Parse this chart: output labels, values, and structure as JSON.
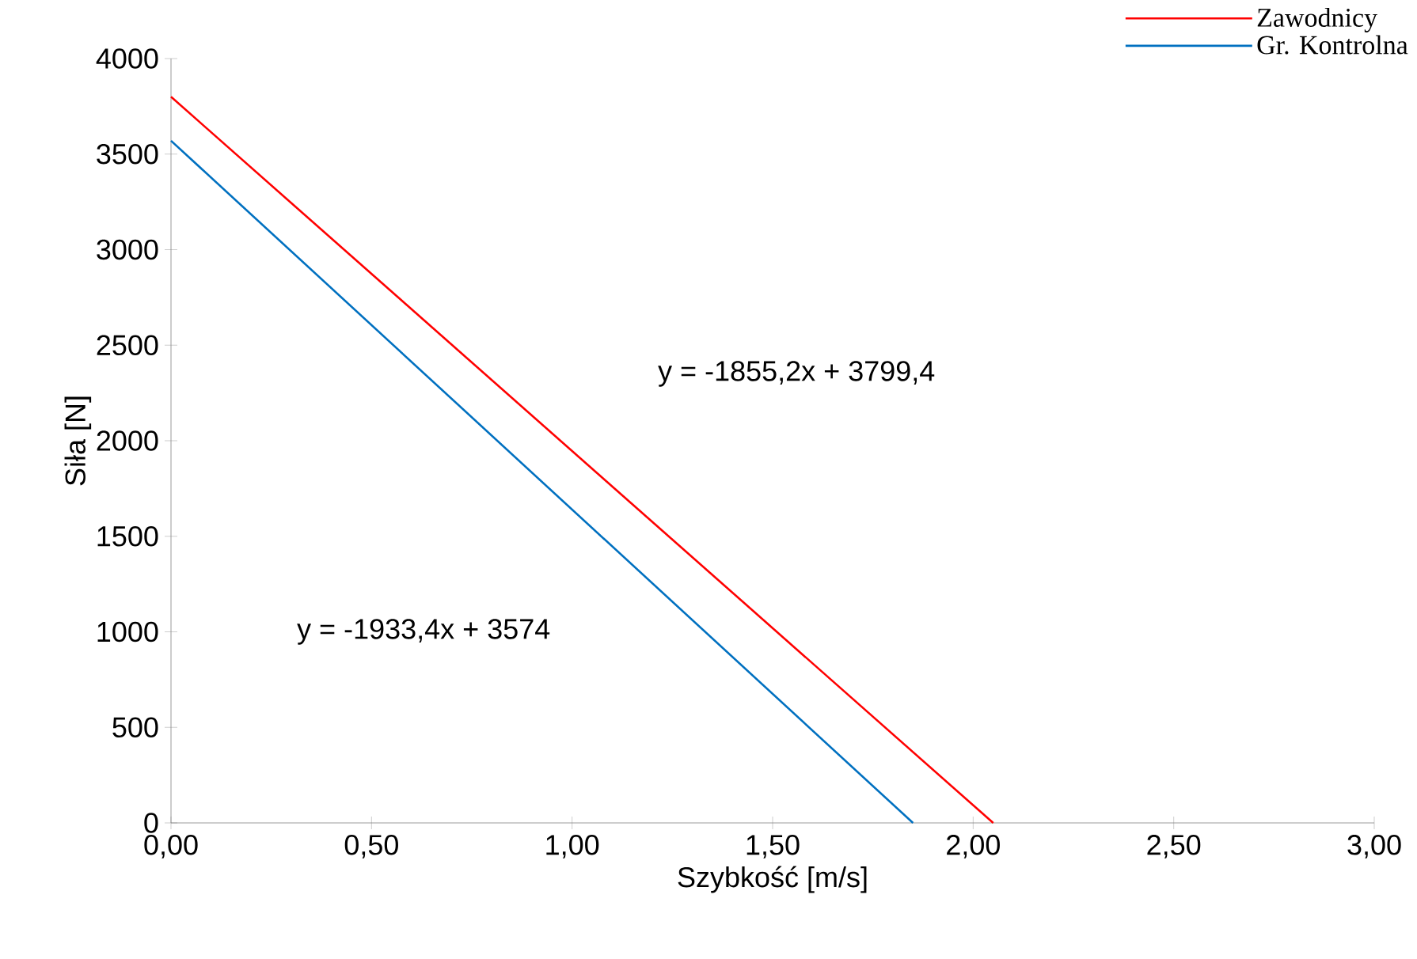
{
  "chart_data": {
    "type": "line",
    "xlabel": "Szybkość [m/s]",
    "ylabel": "Siła [N]",
    "series": [
      {
        "name": "Zawodnicy",
        "color": "#ff0000",
        "x": [
          0,
          2.05
        ],
        "values": [
          3800,
          0
        ]
      },
      {
        "name": "Gr. Kontrolna",
        "color": "#0070c0",
        "x": [
          0,
          1.85
        ],
        "values": [
          3570,
          0
        ]
      }
    ],
    "xlim": [
      0,
      3
    ],
    "xticks": [
      {
        "value": 0,
        "label": "0,00"
      },
      {
        "value": 0.5,
        "label": "0,50"
      },
      {
        "value": 1,
        "label": "1,00"
      },
      {
        "value": 1.5,
        "label": "1,50"
      },
      {
        "value": 2,
        "label": "2,00"
      },
      {
        "value": 2.5,
        "label": "2,50"
      },
      {
        "value": 3,
        "label": "3,00"
      }
    ],
    "ylim": [
      0,
      4000
    ],
    "yticks": [
      0,
      500,
      1000,
      1500,
      2000,
      2500,
      3000,
      3500,
      4000
    ],
    "annotations": [
      "y = -1855,2x + 3799,4",
      "y = -1933,4x + 3574"
    ],
    "legend": "top right",
    "grid": false,
    "marker": "none",
    "line_style": "solid"
  }
}
